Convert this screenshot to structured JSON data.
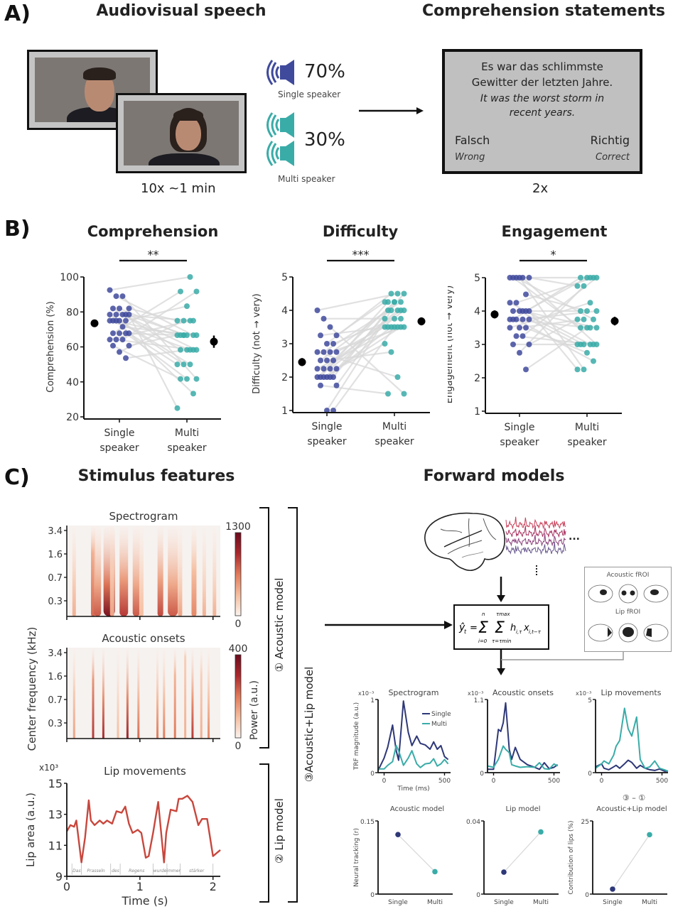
{
  "panelA": {
    "letter": "A)",
    "title_left": "Audiovisual speech",
    "title_right": "Comprehension statements",
    "video_caption": "10x ~1 min",
    "single": {
      "percent": "70%",
      "label": "Single speaker",
      "icon": "speaker-icon",
      "color": "#3f4a9c"
    },
    "multi": {
      "percent": "30%",
      "label": "Multi speaker",
      "icon": "speaker-icon",
      "color": "#3aaca8"
    },
    "statement": {
      "german_line1": "Es war das schlimmste",
      "german_line2": "Gewitter der letzten Jahre.",
      "english_line1": "It was the worst storm in",
      "english_line2": "recent years.",
      "false_label": "Falsch",
      "false_translation": "Wrong",
      "true_label": "Richtig",
      "true_translation": "Correct"
    },
    "statement_caption": "2x"
  },
  "panelB": {
    "letter": "B)"
  },
  "panelC": {
    "letter": "C)",
    "title_left": "Stimulus features",
    "title_right": "Forward models",
    "bracket_acoustic": "① Acoustic model",
    "bracket_lip": "② Lip model",
    "bracket_combined": "③Acoustic+Lip model",
    "shared_ylabel": "Center frequency (kHz)",
    "colorbar_label": "Power (a.u.)",
    "equation": "ŷ_t = Σ_{i=0}^{n} Σ_{τ=τmin}^{τmax} h_{i,τ} x_{i,t−τ}",
    "froi": {
      "acoustic": "Acoustic fROI",
      "lip": "Lip fROI"
    },
    "ellipsis": "..."
  },
  "chart_data": [
    {
      "id": "comprehension",
      "type": "scatter",
      "title": "Comprehension",
      "significance": "**",
      "ylabel": "Comprehension (%)",
      "categories": [
        "Single speaker",
        "Multi speaker"
      ],
      "ylim": [
        20,
        100
      ],
      "yticks": [
        20,
        40,
        60,
        80,
        100
      ],
      "means": [
        {
          "mean": 73.5,
          "err": 2
        },
        {
          "mean": 63,
          "err": 3.5
        }
      ],
      "single": [
        92.5,
        89,
        89,
        82,
        82,
        82,
        78.5,
        78.5,
        78.5,
        78.5,
        78.5,
        75,
        75,
        75,
        75,
        75,
        71.5,
        67.8,
        67.8,
        67.8,
        67.8,
        64.2,
        64.2,
        64.2,
        60.7,
        60.7,
        57.1,
        53.6
      ],
      "multi": [
        100,
        91.7,
        91.7,
        83.3,
        75,
        75,
        75,
        75,
        66.7,
        66.7,
        66.7,
        66.7,
        66.7,
        66.7,
        58.3,
        58.3,
        58.3,
        58.3,
        58.3,
        50,
        50,
        50,
        41.7,
        41.7,
        41.7,
        33.3,
        25,
        66.7
      ]
    },
    {
      "id": "difficulty",
      "type": "scatter",
      "title": "Difficulty",
      "significance": "***",
      "ylabel": "Difficulty (not → very)",
      "categories": [
        "Single speaker",
        "Multi speaker"
      ],
      "ylim": [
        1,
        5
      ],
      "yticks": [
        1,
        2,
        3,
        4,
        5
      ],
      "means": [
        {
          "mean": 2.45,
          "err": 0.12
        },
        {
          "mean": 3.67,
          "err": 0.12
        }
      ],
      "single": [
        4,
        3.75,
        3.5,
        3.25,
        3.25,
        3,
        3,
        2.75,
        2.75,
        2.75,
        2.75,
        2.5,
        2.5,
        2.5,
        2.25,
        2.25,
        2.25,
        2.25,
        2,
        2,
        2,
        2,
        2,
        2,
        1.75,
        1.75,
        1,
        1
      ],
      "multi": [
        4.5,
        4.5,
        4.25,
        4.25,
        4.25,
        4.25,
        4,
        4,
        4,
        4,
        3.75,
        3.75,
        3.75,
        3.5,
        3.5,
        3.5,
        3.5,
        3.5,
        3.5,
        3,
        2.75,
        2,
        1.5,
        1.5,
        4.25,
        4,
        3.5,
        4.5
      ]
    },
    {
      "id": "engagement",
      "type": "scatter",
      "title": "Engagement",
      "significance": "*",
      "ylabel": "Engagement  (not → very)",
      "categories": [
        "Single speaker",
        "Multi speaker"
      ],
      "ylim": [
        1,
        5
      ],
      "yticks": [
        1,
        2,
        3,
        4,
        5
      ],
      "means": [
        {
          "mean": 3.9,
          "err": 0.12
        },
        {
          "mean": 3.7,
          "err": 0.13
        }
      ],
      "single": [
        5,
        5,
        5,
        5,
        5,
        5,
        4.5,
        4.25,
        4.25,
        4,
        4,
        4,
        4,
        4,
        3.75,
        3.75,
        3.75,
        3.75,
        3.75,
        3.5,
        3.5,
        3.5,
        3.25,
        3.25,
        3,
        3,
        2.75,
        2.25
      ],
      "multi": [
        5,
        5,
        5,
        5,
        5,
        4.75,
        4.75,
        4.25,
        4,
        4,
        4,
        3.75,
        3.75,
        3.75,
        3.5,
        3.5,
        3.5,
        3.5,
        3,
        3,
        3,
        3,
        3,
        3,
        2.75,
        2.5,
        2.25,
        2.25
      ]
    },
    {
      "id": "spectrogram",
      "type": "heatmap",
      "title": "Spectrogram",
      "yticks": [
        "0.3",
        "0.7",
        "1.6",
        "3.4"
      ],
      "colorbar": {
        "min": "0",
        "max": "1300"
      },
      "xlim": [
        0,
        2.1
      ]
    },
    {
      "id": "acoustic-onsets",
      "type": "heatmap",
      "title": "Acoustic onsets",
      "yticks": [
        "0.3",
        "0.7",
        "1.6",
        "3.4"
      ],
      "colorbar": {
        "min": "0",
        "max": "400"
      },
      "xlim": [
        0,
        2.1
      ]
    },
    {
      "id": "lip-movements",
      "type": "line",
      "title": "Lip movements",
      "ylabel": "Lip area (a.u.)",
      "xlabel": "Time (s)",
      "y_multiplier": "x10³",
      "ylim": [
        9,
        15
      ],
      "yticks": [
        9,
        11,
        13,
        15
      ],
      "xlim": [
        0,
        2.1
      ],
      "xticks": [
        0,
        1,
        2
      ],
      "words": [
        "Das",
        "Prasseln",
        "des",
        "Regens",
        "wurde",
        "immer",
        "stärker"
      ],
      "x": [
        0,
        0.05,
        0.1,
        0.13,
        0.2,
        0.25,
        0.3,
        0.33,
        0.38,
        0.45,
        0.5,
        0.55,
        0.62,
        0.68,
        0.75,
        0.8,
        0.85,
        0.9,
        0.97,
        1.02,
        1.08,
        1.12,
        1.18,
        1.25,
        1.33,
        1.36,
        1.42,
        1.5,
        1.53,
        1.58,
        1.65,
        1.72,
        1.8,
        1.85,
        1.92,
        2.0,
        2.1
      ],
      "y": [
        11.9,
        12.3,
        12.2,
        12.6,
        9.9,
        11.5,
        13.9,
        12.6,
        12.3,
        12.6,
        12.4,
        12.6,
        12.4,
        13.2,
        13.1,
        13.5,
        12.4,
        11.8,
        12.0,
        11.8,
        10.2,
        10.3,
        11.8,
        13.8,
        9.9,
        11.8,
        13.3,
        13.2,
        14.0,
        14.0,
        14.2,
        13.8,
        12.3,
        12.7,
        12.7,
        10.3,
        10.7
      ]
    },
    {
      "id": "trf-spectrogram",
      "type": "line",
      "title": "Spectrogram",
      "ylabel": "TRF magnitude (a.u.)",
      "xlabel": "Time (ms)",
      "y_multiplier": "x10⁻³",
      "ylim": [
        0,
        1
      ],
      "yticks": [
        "0",
        "1"
      ],
      "xlim": [
        -50,
        550
      ],
      "xticks": [
        0,
        500
      ],
      "legend": [
        "Single",
        "Multi"
      ],
      "x": [
        -50,
        0,
        30,
        70,
        100,
        120,
        160,
        200,
        230,
        270,
        300,
        340,
        380,
        410,
        440,
        470,
        500,
        530
      ],
      "series": [
        {
          "name": "Single",
          "values": [
            0.03,
            0.2,
            0.35,
            0.65,
            0.3,
            0.17,
            0.98,
            0.55,
            0.37,
            0.5,
            0.4,
            0.38,
            0.32,
            0.42,
            0.32,
            0.37,
            0.22,
            0.18
          ]
        },
        {
          "name": "Multi",
          "values": [
            0.05,
            0.05,
            0.1,
            0.15,
            0.37,
            0.3,
            0.1,
            0.2,
            0.3,
            0.12,
            0.07,
            0.12,
            0.13,
            0.19,
            0.09,
            0.12,
            0.18,
            0.12
          ]
        }
      ]
    },
    {
      "id": "trf-acoustic-onsets",
      "type": "line",
      "title": "Acoustic onsets",
      "y_multiplier": "x10⁻³",
      "ylim": [
        0,
        1.1
      ],
      "yticks": [
        "0",
        "1.1"
      ],
      "xlim": [
        -50,
        550
      ],
      "xticks": [
        0,
        500
      ],
      "x": [
        -50,
        0,
        40,
        60,
        80,
        100,
        130,
        150,
        180,
        220,
        280,
        340,
        380,
        420,
        460,
        500,
        530
      ],
      "series": [
        {
          "name": "Single",
          "values": [
            0.05,
            0.05,
            0.65,
            0.62,
            0.75,
            1.05,
            0.35,
            0.2,
            0.38,
            0.2,
            0.12,
            0.08,
            0.05,
            0.15,
            0.06,
            0.08,
            0.12
          ]
        },
        {
          "name": "Multi",
          "values": [
            0.1,
            0.08,
            0.2,
            0.3,
            0.4,
            0.35,
            0.3,
            0.12,
            0.1,
            0.08,
            0.09,
            0.08,
            0.15,
            0.06,
            0.05,
            0.13,
            0.1
          ]
        }
      ]
    },
    {
      "id": "trf-lip-movements",
      "type": "line",
      "title": "Lip movements",
      "y_multiplier": "x10⁻³",
      "ylim": [
        0,
        5
      ],
      "yticks": [
        "0",
        "5"
      ],
      "xlim": [
        -50,
        550
      ],
      "xticks": [
        0,
        500
      ],
      "x": [
        -50,
        0,
        20,
        60,
        100,
        120,
        150,
        190,
        220,
        250,
        290,
        320,
        360,
        400,
        440,
        480,
        520,
        550
      ],
      "series": [
        {
          "name": "Single",
          "values": [
            0.4,
            0.6,
            0.3,
            0.2,
            0.4,
            0.5,
            0.3,
            0.6,
            0.85,
            0.7,
            0.3,
            0.5,
            0.3,
            0.2,
            0.15,
            0.25,
            0.1,
            0.1
          ]
        },
        {
          "name": "Multi",
          "values": [
            0.3,
            0.6,
            0.8,
            0.6,
            1.2,
            1.8,
            2.2,
            4.4,
            3.0,
            2.5,
            3.8,
            0.9,
            0.3,
            0.4,
            0.8,
            0.3,
            0.2,
            0.1
          ]
        }
      ]
    },
    {
      "id": "neural-acoustic",
      "type": "line",
      "title": "Acoustic model",
      "ylabel": "Neural tracking (r)",
      "categories": [
        "Single",
        "Multi"
      ],
      "ylim": [
        0,
        0.15
      ],
      "yticks": [
        "0",
        "0.15"
      ],
      "values": [
        0.122,
        0.046
      ]
    },
    {
      "id": "neural-lip",
      "type": "line",
      "title": "Lip model",
      "categories": [
        "Single",
        "Multi"
      ],
      "ylim": [
        0,
        0.04
      ],
      "yticks": [
        "0",
        "0.04"
      ],
      "values": [
        0.012,
        0.034
      ]
    },
    {
      "id": "contribution-lips",
      "type": "line",
      "title": "Acoustic+Lip model",
      "supertitle": "③ – ①",
      "ylabel": "Contribution of lips (%)",
      "categories": [
        "Single",
        "Multi"
      ],
      "ylim": [
        0,
        25
      ],
      "yticks": [
        "0",
        "25"
      ],
      "values": [
        1.7,
        20.3
      ]
    }
  ],
  "colors": {
    "single": "#3f4a9c",
    "multi": "#3aaca8",
    "single_dark": "#2e3878",
    "lip_line": "#c8473d",
    "paired_line": "#d8d8d8",
    "heat_high": "#6b0c1c",
    "heat_mid": "#e07a5a",
    "heat_low": "#fbf3ee"
  }
}
